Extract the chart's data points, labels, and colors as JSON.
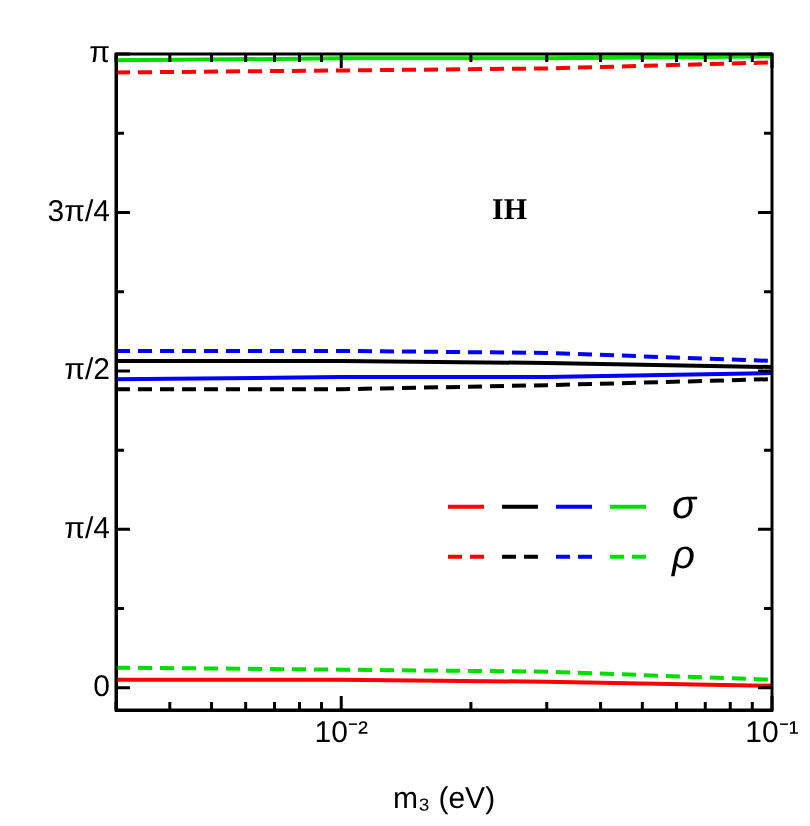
{
  "chart_data": {
    "type": "line",
    "xlabel": "m₃ (eV)",
    "annotations": [
      "IH"
    ],
    "x": [
      0.003,
      0.01,
      0.03,
      0.1
    ],
    "log": "x",
    "xlim": [
      0.003,
      0.1
    ],
    "xticks": [
      {
        "value": 0.003,
        "label": null
      },
      {
        "value": 0.004,
        "label": null
      },
      {
        "value": 0.005,
        "label": null
      },
      {
        "value": 0.006,
        "label": null
      },
      {
        "value": 0.007,
        "label": null
      },
      {
        "value": 0.008,
        "label": null
      },
      {
        "value": 0.009,
        "label": null
      },
      {
        "value": 0.01,
        "label": "10⁻²"
      },
      {
        "value": 0.02,
        "label": null
      },
      {
        "value": 0.03,
        "label": null
      },
      {
        "value": 0.04,
        "label": null
      },
      {
        "value": 0.05,
        "label": null
      },
      {
        "value": 0.06,
        "label": null
      },
      {
        "value": 0.07,
        "label": null
      },
      {
        "value": 0.08,
        "label": null
      },
      {
        "value": 0.09,
        "label": null
      },
      {
        "value": 0.1,
        "label": "10⁻¹"
      }
    ],
    "ylim": [
      -0.11,
      3.1416
    ],
    "yticks": [
      {
        "value": 0,
        "label": "0"
      },
      {
        "value": 0.3927,
        "label": null
      },
      {
        "value": 0.7854,
        "label": "π/4"
      },
      {
        "value": 1.1781,
        "label": null
      },
      {
        "value": 1.5708,
        "label": "π/2"
      },
      {
        "value": 1.9635,
        "label": null
      },
      {
        "value": 2.3562,
        "label": "3π/4"
      },
      {
        "value": 2.7489,
        "label": null
      },
      {
        "value": 3.1416,
        "label": "π"
      }
    ],
    "grid": false,
    "legend": "right",
    "series": [
      {
        "color": "#ff0000",
        "line_style": "solid",
        "values": [
          0.04,
          0.04,
          0.03,
          0.01
        ]
      },
      {
        "color": "#000000",
        "line_style": "solid",
        "values": [
          1.62,
          1.62,
          1.61,
          1.59
        ]
      },
      {
        "color": "#0000ff",
        "line_style": "solid",
        "values": [
          1.53,
          1.54,
          1.54,
          1.56
        ]
      },
      {
        "name": "σ",
        "color": "#00dd00",
        "line_style": "solid",
        "values": [
          3.11,
          3.12,
          3.12,
          3.13
        ]
      },
      {
        "color": "#ff0000",
        "line_style": "dashed",
        "values": [
          3.05,
          3.06,
          3.07,
          3.1
        ]
      },
      {
        "color": "#000000",
        "line_style": "dashed",
        "values": [
          1.48,
          1.48,
          1.5,
          1.53
        ]
      },
      {
        "color": "#0000ff",
        "line_style": "dashed",
        "values": [
          1.67,
          1.67,
          1.66,
          1.62
        ]
      },
      {
        "name": "ρ",
        "color": "#00dd00",
        "line_style": "dashed",
        "values": [
          0.1,
          0.09,
          0.08,
          0.04
        ]
      }
    ]
  }
}
